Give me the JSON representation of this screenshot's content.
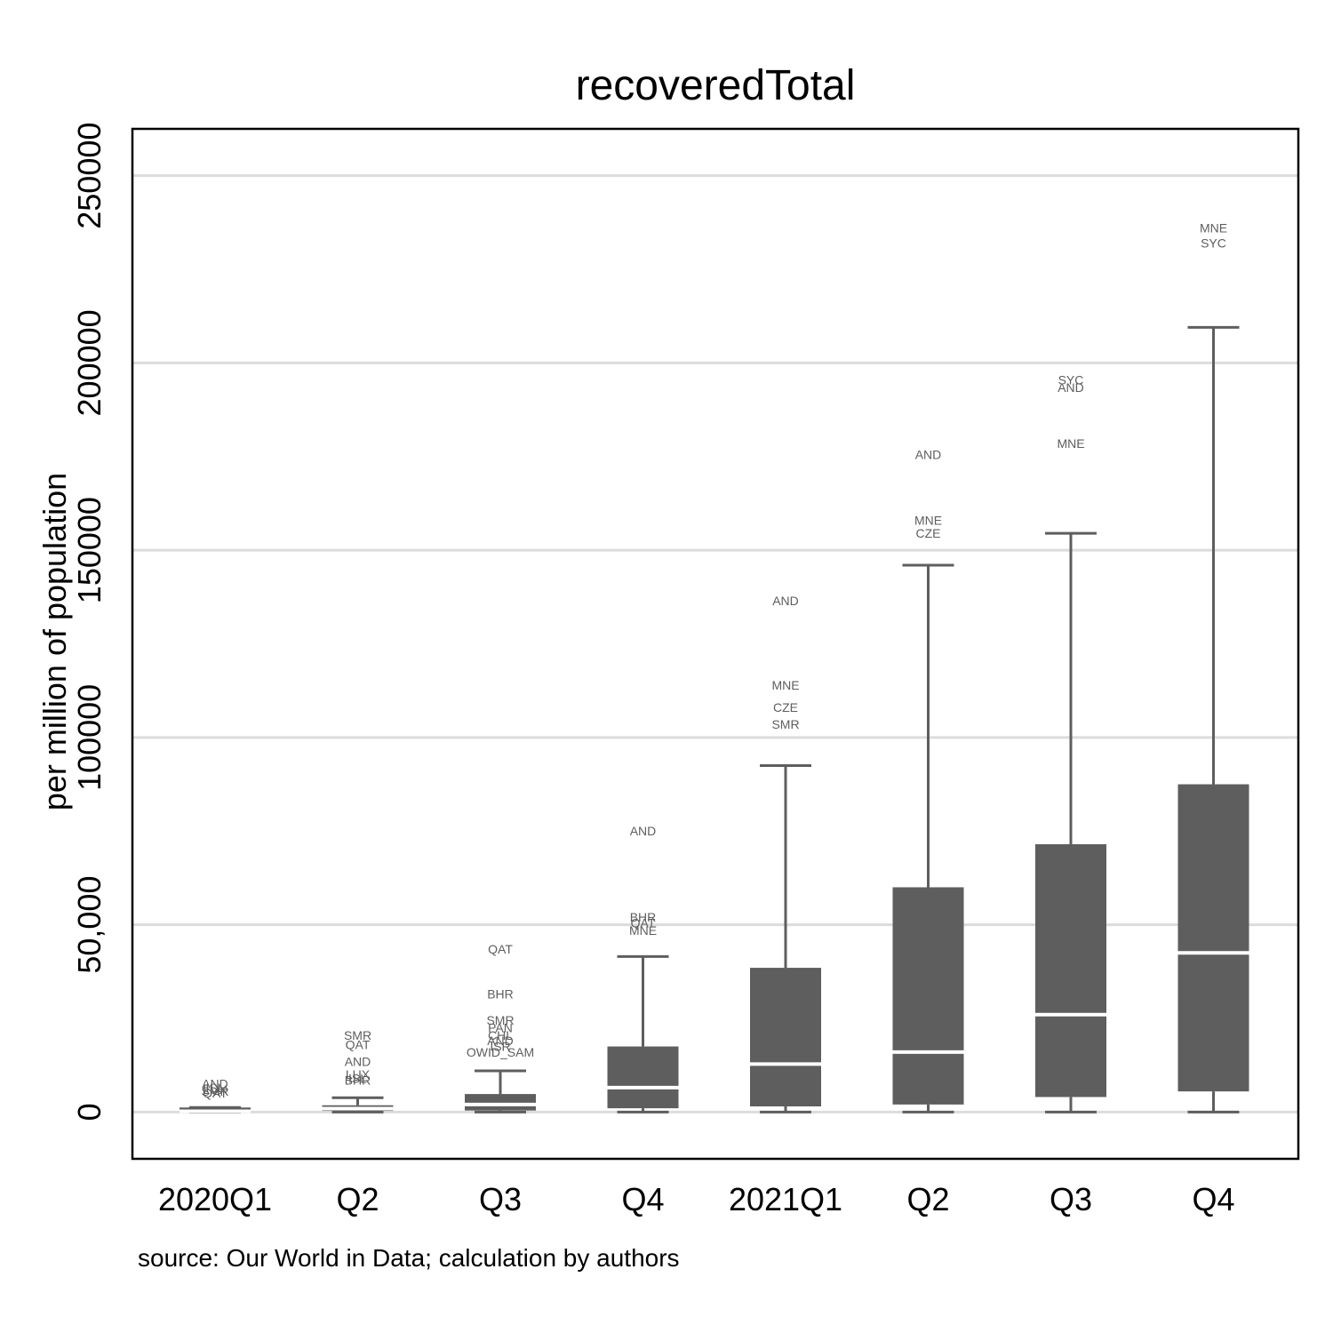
{
  "chart_data": {
    "type": "box",
    "title": "recoveredTotal",
    "xlabel": "",
    "ylabel": "per million of population",
    "ylim": [
      -12500,
      262500
    ],
    "y_ticks": [
      {
        "value": 0,
        "label": "0"
      },
      {
        "value": 50000,
        "label": "50,000"
      },
      {
        "value": 100000,
        "label": "100000"
      },
      {
        "value": 150000,
        "label": "150000"
      },
      {
        "value": 200000,
        "label": "200000"
      },
      {
        "value": 250000,
        "label": "250000"
      }
    ],
    "grid": true,
    "categories": [
      "2020Q1",
      "Q2",
      "Q3",
      "Q4",
      "2021Q1",
      "Q2",
      "Q3",
      "Q4"
    ],
    "boxes": [
      {
        "whisker_low": 0,
        "q1": 0,
        "median": 200,
        "q3": 1200,
        "whisker_high": 1200
      },
      {
        "whisker_low": 0,
        "q1": 300,
        "median": 900,
        "q3": 1800,
        "whisker_high": 3800
      },
      {
        "whisker_low": 0,
        "q1": 400,
        "median": 2000,
        "q3": 4800,
        "whisker_high": 11000
      },
      {
        "whisker_low": 0,
        "q1": 1000,
        "median": 6500,
        "q3": 17500,
        "whisker_high": 41500
      },
      {
        "whisker_low": 0,
        "q1": 1500,
        "median": 12800,
        "q3": 38500,
        "whisker_high": 92500
      },
      {
        "whisker_low": 0,
        "q1": 2000,
        "median": 16000,
        "q3": 60000,
        "whisker_high": 146000
      },
      {
        "whisker_low": 0,
        "q1": 4000,
        "median": 26000,
        "q3": 71500,
        "whisker_high": 154500
      },
      {
        "whisker_low": 0,
        "q1": 5500,
        "median": 42500,
        "q3": 87500,
        "whisker_high": 209500
      }
    ],
    "outliers": [
      {
        "category_index": 0,
        "label": "AND",
        "value": 7500
      },
      {
        "category_index": 0,
        "label": "ISL",
        "value": 6500
      },
      {
        "category_index": 0,
        "label": "LUX",
        "value": 6000
      },
      {
        "category_index": 0,
        "label": "SMR",
        "value": 5500
      },
      {
        "category_index": 0,
        "label": "QAT",
        "value": 5000
      },
      {
        "category_index": 1,
        "label": "SMR",
        "value": 20500
      },
      {
        "category_index": 1,
        "label": "QAT",
        "value": 18000
      },
      {
        "category_index": 1,
        "label": "AND",
        "value": 13500
      },
      {
        "category_index": 1,
        "label": "LUX",
        "value": 10000
      },
      {
        "category_index": 1,
        "label": "ISL",
        "value": 9000
      },
      {
        "category_index": 1,
        "label": "BHR",
        "value": 8500
      },
      {
        "category_index": 2,
        "label": "QAT",
        "value": 43500
      },
      {
        "category_index": 2,
        "label": "BHR",
        "value": 31500
      },
      {
        "category_index": 2,
        "label": "SMR",
        "value": 24500
      },
      {
        "category_index": 2,
        "label": "PAN",
        "value": 22500
      },
      {
        "category_index": 2,
        "label": "CHL",
        "value": 20500
      },
      {
        "category_index": 2,
        "label": "AND",
        "value": 19000
      },
      {
        "category_index": 2,
        "label": "ISR",
        "value": 17500
      },
      {
        "category_index": 2,
        "label": "OWID_SAM",
        "value": 16000
      },
      {
        "category_index": 3,
        "label": "AND",
        "value": 75000
      },
      {
        "category_index": 3,
        "label": "BHR",
        "value": 52000
      },
      {
        "category_index": 3,
        "label": "QAT",
        "value": 50500
      },
      {
        "category_index": 3,
        "label": "MNE",
        "value": 48500
      },
      {
        "category_index": 4,
        "label": "AND",
        "value": 136500
      },
      {
        "category_index": 4,
        "label": "MNE",
        "value": 114000
      },
      {
        "category_index": 4,
        "label": "CZE",
        "value": 108000
      },
      {
        "category_index": 4,
        "label": "SMR",
        "value": 103500
      },
      {
        "category_index": 5,
        "label": "AND",
        "value": 175500
      },
      {
        "category_index": 5,
        "label": "MNE",
        "value": 158000
      },
      {
        "category_index": 5,
        "label": "CZE",
        "value": 154500
      },
      {
        "category_index": 6,
        "label": "SYC",
        "value": 195500
      },
      {
        "category_index": 6,
        "label": "AND",
        "value": 193500
      },
      {
        "category_index": 6,
        "label": "MNE",
        "value": 178500
      },
      {
        "category_index": 7,
        "label": "MNE",
        "value": 236000
      },
      {
        "category_index": 7,
        "label": "SYC",
        "value": 232000
      }
    ],
    "colors": {
      "box_fill": "#5e5e5e",
      "median_line": "#ffffff",
      "whisker": "#5e5e5e",
      "grid": "#dcdcdc",
      "outlier_text": "#5e5e5e"
    }
  },
  "note": "source: Our World in Data; calculation by authors"
}
